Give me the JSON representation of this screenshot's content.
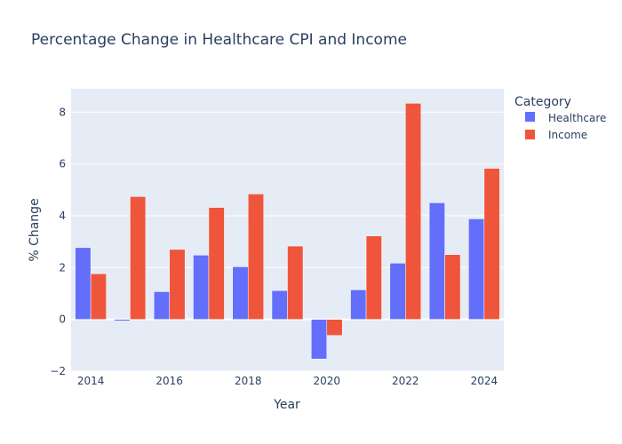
{
  "chart_data": {
    "type": "bar",
    "title": "Percentage Change in Healthcare CPI and Income",
    "xlabel": "Year",
    "ylabel": "% Change",
    "categories": [
      "2014",
      "2015",
      "2016",
      "2017",
      "2018",
      "2019",
      "2020",
      "2021",
      "2022",
      "2023",
      "2024"
    ],
    "x_tick_labels": [
      "2014",
      "2016",
      "2018",
      "2020",
      "2022",
      "2024"
    ],
    "y_tick_labels": [
      "−2",
      "0",
      "2",
      "4",
      "6",
      "8"
    ],
    "ylim": [
      -2,
      8.9
    ],
    "grid": true,
    "legend": {
      "title": "Category",
      "position": "right"
    },
    "series": [
      {
        "name": "Healthcare",
        "color": "#636efa",
        "values": [
          2.77,
          -0.06,
          1.07,
          2.48,
          2.03,
          1.11,
          -1.53,
          1.14,
          2.17,
          4.5,
          3.88
        ]
      },
      {
        "name": "Income",
        "color": "#ef553b",
        "values": [
          1.76,
          4.74,
          2.7,
          4.32,
          4.84,
          2.83,
          -0.62,
          3.22,
          8.34,
          2.5,
          5.83
        ]
      }
    ]
  }
}
